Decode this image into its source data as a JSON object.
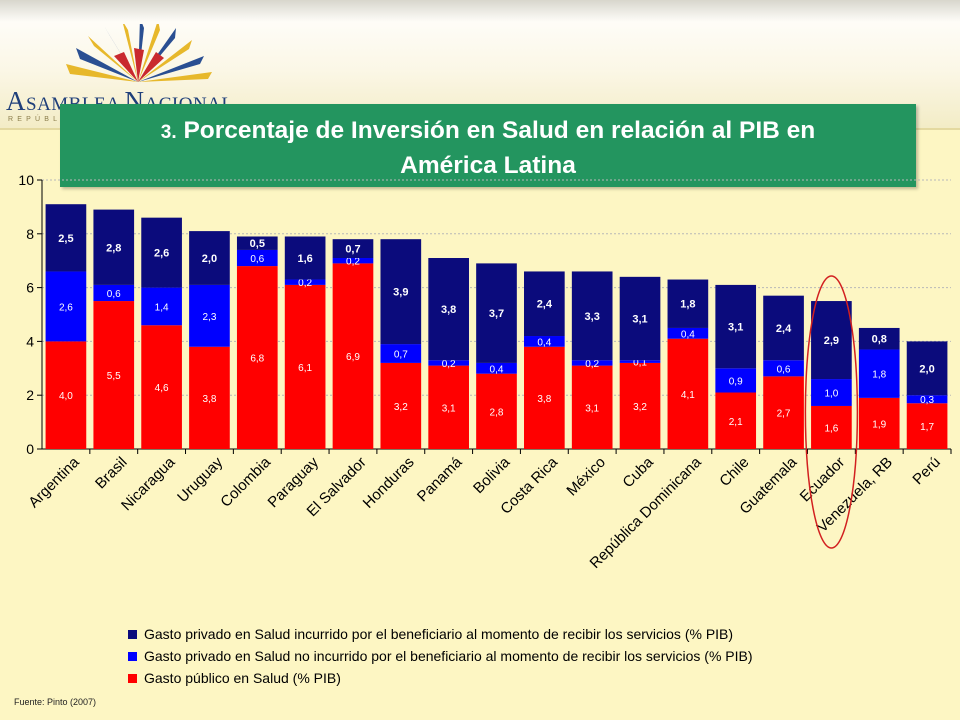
{
  "header": {
    "logo_name_big1": "A",
    "logo_name_small1": "SAMBLEA ",
    "logo_name_big2": "N",
    "logo_name_small2": "ACIONAL",
    "logo_subtitle": "REPÚBLICA DEL ECUADOR"
  },
  "title": {
    "number": "3.",
    "line1": "Porcentaje de Inversión en Salud en relación al PIB en",
    "line2": "América Latina"
  },
  "source": "Fuente: Pinto (2007)",
  "colors": {
    "background": "#fdf6c3",
    "title_bg": "#23955f",
    "public": "#ff0000",
    "private_not_incurred": "#0000ff",
    "private_incurred": "#0b0b7c",
    "highlight_ellipse": "#d22020"
  },
  "chart_data": {
    "type": "bar",
    "stacked": true,
    "categories": [
      "Argentina",
      "Brasil",
      "Nicaragua",
      "Uruguay",
      "Colombia",
      "Paraguay",
      "El Salvador",
      "Honduras",
      "Panamá",
      "Bolivia",
      "Costa Rica",
      "México",
      "Cuba",
      "República Dominicana",
      "Chile",
      "Guatemala",
      "Ecuador",
      "Venezuela, RB",
      "Perú"
    ],
    "series": [
      {
        "name": "Gasto público en Salud (% PIB)",
        "color": "#ff0000",
        "values": [
          4.0,
          5.5,
          4.6,
          3.8,
          6.8,
          6.1,
          6.9,
          3.2,
          3.1,
          2.8,
          3.8,
          3.1,
          3.2,
          4.1,
          2.1,
          2.7,
          1.6,
          1.9,
          1.7
        ],
        "labels": [
          "4,0",
          "5,5",
          "4,6",
          "3,8",
          "6,8",
          "6,1",
          "6,9",
          "3,2",
          "3,1",
          "2,8",
          "3,8",
          "3,1",
          "3,2",
          "4,1",
          "2,1",
          "2,7",
          "1,6",
          "1,9",
          "1,7"
        ]
      },
      {
        "name": "Gasto privado en Salud no incurrido por el beneficiario al momento de recibir los servicios (% PIB)",
        "color": "#0000ff",
        "values": [
          2.6,
          0.6,
          1.4,
          2.3,
          0.6,
          0.2,
          0.2,
          0.7,
          0.2,
          0.4,
          0.4,
          0.2,
          0.1,
          0.4,
          0.9,
          0.6,
          1.0,
          1.8,
          0.3
        ],
        "labels": [
          "2,6",
          "0,6",
          "1,4",
          "2,3",
          "0,6",
          "0,2",
          "0,2",
          "0,7",
          "0,2",
          "0,4",
          "0,4",
          "0,2",
          "0,1",
          "0,4",
          "0,9",
          "0,6",
          "1,0",
          "1,8",
          "0,3"
        ]
      },
      {
        "name": "Gasto privado en Salud incurrido por el beneficiario al momento de recibir los servicios (% PIB)",
        "color": "#0b0b7c",
        "values": [
          2.5,
          2.8,
          2.6,
          2.0,
          0.5,
          1.6,
          0.7,
          3.9,
          3.8,
          3.7,
          2.4,
          3.3,
          3.1,
          1.8,
          3.1,
          2.4,
          2.9,
          0.8,
          2.0
        ],
        "labels": [
          "2,5",
          "2,8",
          "2,6",
          "2,0",
          "0,5",
          "1,6",
          "0,7",
          "3,9",
          "3,8",
          "3,7",
          "2,4",
          "3,3",
          "3,1",
          "1,8",
          "3,1",
          "2,4",
          "2,9",
          "0,8",
          "2,0"
        ]
      }
    ],
    "legend_order": [
      2,
      1,
      0
    ],
    "ylim": [
      0,
      10
    ],
    "yticks": [
      "0",
      "2",
      "4",
      "6",
      "8",
      "10"
    ],
    "xlabel": "",
    "ylabel": "",
    "grid": true,
    "legend_position": "bottom",
    "highlighted_category": "Ecuador"
  }
}
